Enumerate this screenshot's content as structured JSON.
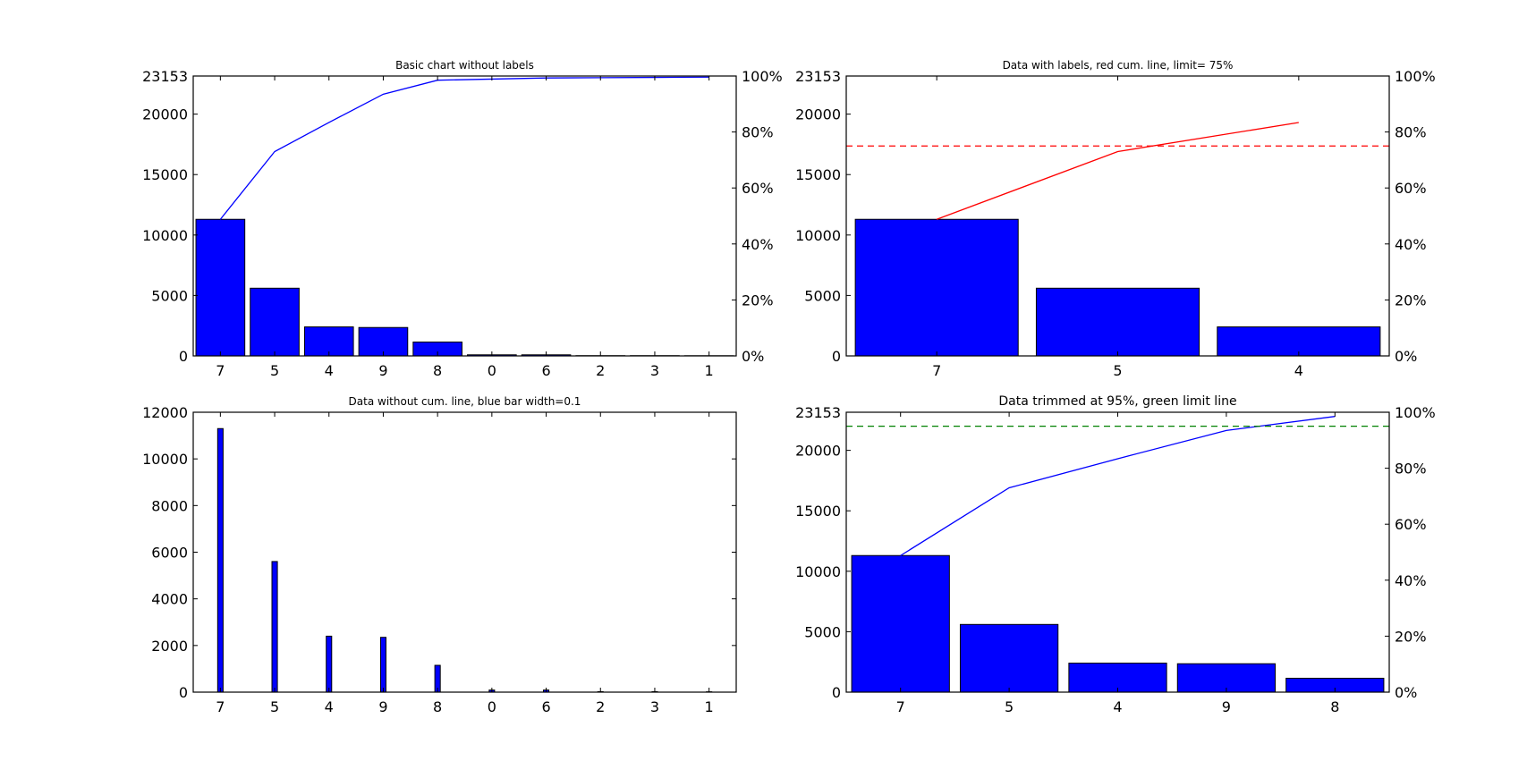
{
  "colors": {
    "bar": "#0000ff",
    "edge": "#000000",
    "cum_blue": "#0000ff",
    "cum_red": "#ff0000",
    "limit_red": "#ff0000",
    "limit_green": "#008000"
  },
  "chart_data": [
    {
      "type": "bar",
      "title": "Basic chart without labels",
      "categories": [
        "7",
        "5",
        "4",
        "9",
        "8",
        "0",
        "6",
        "2",
        "3",
        "1"
      ],
      "values": [
        11300,
        5600,
        2400,
        2350,
        1150,
        90,
        90,
        20,
        20,
        15
      ],
      "ylim": [
        0,
        23153
      ],
      "yticks": [
        "0",
        "5000",
        "10000",
        "15000",
        "20000",
        "23153"
      ],
      "secondary_axis": {
        "ticks": [
          "0%",
          "20%",
          "40%",
          "60%",
          "80%",
          "100%"
        ]
      },
      "cumulative_pct": [
        48.8,
        73.0,
        83.4,
        93.5,
        98.5,
        98.9,
        99.3,
        99.4,
        99.5,
        99.6
      ],
      "line_color": "blue",
      "limit": null
    },
    {
      "type": "bar",
      "title": "Data with labels, red cum. line, limit= 75%",
      "categories": [
        "7",
        "5",
        "4"
      ],
      "values": [
        11300,
        5600,
        2400
      ],
      "ylim": [
        0,
        23153
      ],
      "yticks": [
        "0",
        "5000",
        "10000",
        "15000",
        "20000",
        "23153"
      ],
      "secondary_axis": {
        "ticks": [
          "0%",
          "20%",
          "40%",
          "60%",
          "80%",
          "100%"
        ]
      },
      "cumulative_pct": [
        48.8,
        73.0,
        83.4
      ],
      "line_color": "red",
      "limit": 75,
      "limit_color": "red"
    },
    {
      "type": "bar",
      "title": "Data without cum. line, blue bar width=0.1",
      "categories": [
        "7",
        "5",
        "4",
        "9",
        "8",
        "0",
        "6",
        "2",
        "3",
        "1"
      ],
      "values": [
        11300,
        5600,
        2400,
        2350,
        1150,
        90,
        90,
        20,
        20,
        15
      ],
      "ylim": [
        0,
        12000
      ],
      "yticks": [
        "0",
        "2000",
        "4000",
        "6000",
        "8000",
        "10000",
        "12000"
      ],
      "bar_width": 0.1,
      "secondary_axis": null,
      "cumulative_pct": null,
      "limit": null
    },
    {
      "type": "bar",
      "title": "Data trimmed at 95%, green limit line",
      "categories": [
        "7",
        "5",
        "4",
        "9",
        "8"
      ],
      "values": [
        11300,
        5600,
        2400,
        2350,
        1150
      ],
      "ylim": [
        0,
        23153
      ],
      "yticks": [
        "0",
        "5000",
        "10000",
        "15000",
        "20000",
        "23153"
      ],
      "secondary_axis": {
        "ticks": [
          "0%",
          "20%",
          "40%",
          "60%",
          "80%",
          "100%"
        ]
      },
      "cumulative_pct": [
        48.8,
        73.0,
        83.4,
        93.5,
        98.5
      ],
      "line_color": "blue",
      "limit": 95,
      "limit_color": "green"
    }
  ]
}
